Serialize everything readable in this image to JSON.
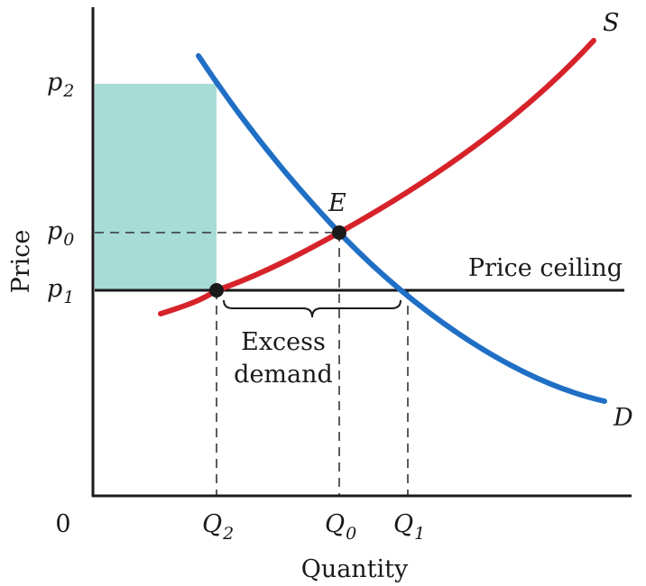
{
  "axes": {
    "y_label": "Price",
    "x_label": "Quantity",
    "origin": "0"
  },
  "price_levels": [
    {
      "symbol": "p",
      "sub": "2"
    },
    {
      "symbol": "p",
      "sub": "0"
    },
    {
      "symbol": "p",
      "sub": "1"
    }
  ],
  "quantity_levels": [
    {
      "symbol": "Q",
      "sub": "2"
    },
    {
      "symbol": "Q",
      "sub": "0"
    },
    {
      "symbol": "Q",
      "sub": "1"
    }
  ],
  "curves": {
    "supply": {
      "label": "S",
      "color": "#d6232a"
    },
    "demand": {
      "label": "D",
      "color": "#1f6fc5"
    }
  },
  "equilibrium_label": "E",
  "ceiling_label": "Price ceiling",
  "excess_demand": {
    "line1": "Excess",
    "line2": "demand"
  },
  "shaded_area_color": "#a6dbd6"
}
